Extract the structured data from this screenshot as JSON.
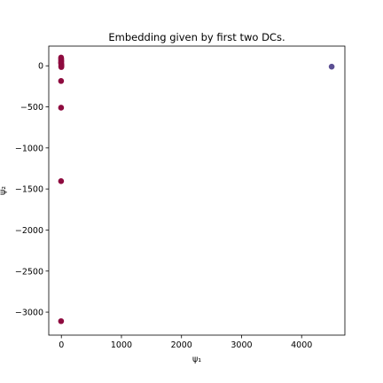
{
  "chart_data": {
    "type": "scatter",
    "title": "Embedding given by first two DCs.",
    "xlabel": "ψ₁",
    "ylabel": "ψ₂",
    "xlim": [
      -210,
      4720
    ],
    "ylim": [
      -3280,
      240
    ],
    "x_ticks": [
      0,
      1000,
      2000,
      3000,
      4000
    ],
    "x_tick_labels": [
      "0",
      "1000",
      "2000",
      "3000",
      "4000"
    ],
    "y_ticks": [
      0,
      -500,
      -1000,
      -1500,
      -2000,
      -2500,
      -3000
    ],
    "y_tick_labels": [
      "0",
      "−500",
      "−1000",
      "−1500",
      "−2000",
      "−2500",
      "−3000"
    ],
    "grid": false,
    "colors": {
      "cluster_a": "#8e0b3f",
      "cluster_b": "#5b4f93"
    },
    "series": [
      {
        "color_key": "cluster_a",
        "points": [
          {
            "x": -5,
            "y": 100
          },
          {
            "x": -3,
            "y": 85
          },
          {
            "x": -4,
            "y": 70
          },
          {
            "x": -2,
            "y": 55
          },
          {
            "x": -5,
            "y": 40
          },
          {
            "x": -3,
            "y": 28
          },
          {
            "x": -1,
            "y": 15
          },
          {
            "x": 0,
            "y": 5
          },
          {
            "x": -2,
            "y": -5
          },
          {
            "x": -1,
            "y": -15
          },
          {
            "x": -5,
            "y": -185
          },
          {
            "x": -5,
            "y": -510
          },
          {
            "x": -5,
            "y": -1405
          },
          {
            "x": -5,
            "y": -3110
          }
        ]
      },
      {
        "color_key": "cluster_b",
        "points": [
          {
            "x": 4500,
            "y": -10
          }
        ]
      }
    ]
  }
}
